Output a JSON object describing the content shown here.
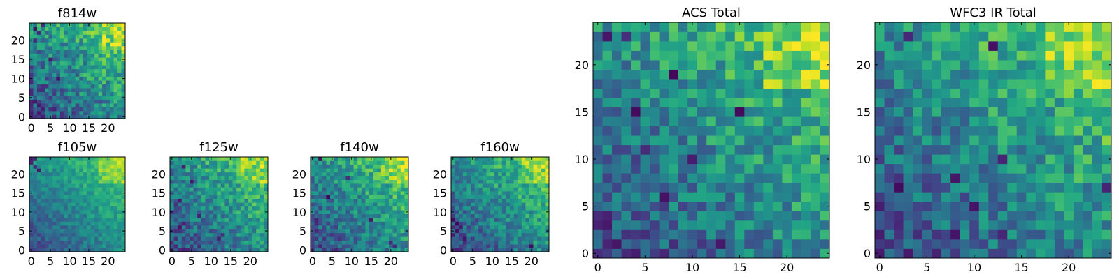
{
  "chart_data": [
    {
      "type": "heatmap",
      "title": "f814w",
      "grid_size": 25,
      "colormap": "viridis",
      "xlim": [
        0,
        25
      ],
      "ylim": [
        0,
        25
      ],
      "xticks": [
        0,
        5,
        10,
        15,
        20
      ],
      "yticks": [
        0,
        5,
        10,
        15,
        20
      ],
      "xtick_labels": [
        "0",
        "5",
        "10",
        "15",
        "20"
      ],
      "ytick_labels": [
        "0",
        "5",
        "10",
        "15",
        "20"
      ],
      "xlabel": "",
      "ylabel": "",
      "gradient": "increasing toward upper-right, noisy",
      "dark_cells": [
        [
          0,
          3
        ],
        [
          1,
          4
        ],
        [
          1,
          23
        ],
        [
          2,
          22
        ],
        [
          5,
          15
        ],
        [
          6,
          2
        ],
        [
          7,
          10
        ],
        [
          3,
          24
        ],
        [
          1,
          20
        ]
      ],
      "seed": 11,
      "noise": 0.35
    },
    {
      "type": "heatmap",
      "title": "f105w",
      "grid_size": 25,
      "colormap": "viridis",
      "xlim": [
        0,
        25
      ],
      "ylim": [
        0,
        25
      ],
      "xticks": [
        0,
        5,
        10,
        15,
        20
      ],
      "yticks": [
        0,
        5,
        10,
        15,
        20
      ],
      "xtick_labels": [
        "0",
        "5",
        "10",
        "15",
        "20"
      ],
      "ytick_labels": [
        "0",
        "5",
        "10",
        "15",
        "20"
      ],
      "xlabel": "",
      "ylabel": "",
      "gradient": "smooth, brightest upper-right",
      "dark_cells": [
        [
          0,
          23
        ],
        [
          1,
          22
        ],
        [
          2,
          21
        ],
        [
          0,
          24
        ],
        [
          1,
          24
        ]
      ],
      "seed": 23,
      "noise": 0.18
    },
    {
      "type": "heatmap",
      "title": "f125w",
      "grid_size": 25,
      "colormap": "viridis",
      "xlim": [
        0,
        25
      ],
      "ylim": [
        0,
        25
      ],
      "xticks": [
        0,
        5,
        10,
        15,
        20
      ],
      "yticks": [
        0,
        5,
        10,
        15,
        20
      ],
      "xtick_labels": [
        "0",
        "5",
        "10",
        "15",
        "20"
      ],
      "ytick_labels": [
        "0",
        "5",
        "10",
        "15",
        "20"
      ],
      "xlabel": "",
      "ylabel": "",
      "gradient": "increasing toward upper-right",
      "dark_cells": [
        [
          2,
          6
        ],
        [
          3,
          7
        ],
        [
          12,
          3
        ],
        [
          13,
          4
        ],
        [
          3,
          22
        ],
        [
          1,
          12
        ],
        [
          2,
          13
        ],
        [
          5,
          18
        ],
        [
          7,
          9
        ]
      ],
      "seed": 37,
      "noise": 0.3
    },
    {
      "type": "heatmap",
      "title": "f140w",
      "grid_size": 25,
      "colormap": "viridis",
      "xlim": [
        0,
        25
      ],
      "ylim": [
        0,
        25
      ],
      "xticks": [
        0,
        5,
        10,
        15,
        20
      ],
      "yticks": [
        0,
        5,
        10,
        15,
        20
      ],
      "xtick_labels": [
        "0",
        "5",
        "10",
        "15",
        "20"
      ],
      "ytick_labels": [
        "0",
        "5",
        "10",
        "15",
        "20"
      ],
      "xlabel": "",
      "ylabel": "",
      "gradient": "increasing toward upper-right",
      "dark_cells": [
        [
          1,
          7
        ],
        [
          1,
          8
        ],
        [
          15,
          8
        ],
        [
          20,
          2
        ],
        [
          21,
          1
        ],
        [
          4,
          14
        ],
        [
          2,
          24
        ],
        [
          9,
          19
        ]
      ],
      "seed": 41,
      "noise": 0.3
    },
    {
      "type": "heatmap",
      "title": "f160w",
      "grid_size": 25,
      "colormap": "viridis",
      "xlim": [
        0,
        25
      ],
      "ylim": [
        0,
        25
      ],
      "xticks": [
        0,
        5,
        10,
        15,
        20
      ],
      "yticks": [
        0,
        5,
        10,
        15,
        20
      ],
      "xtick_labels": [
        "0",
        "5",
        "10",
        "15",
        "20"
      ],
      "ytick_labels": [
        "0",
        "5",
        "10",
        "15",
        "20"
      ],
      "xlabel": "",
      "ylabel": "",
      "gradient": "increasing toward upper-right, dark lower-left",
      "dark_cells": [
        [
          0,
          4
        ],
        [
          1,
          5
        ],
        [
          0,
          6
        ],
        [
          1,
          7
        ],
        [
          0,
          8
        ],
        [
          2,
          6
        ],
        [
          20,
          1
        ],
        [
          3,
          3
        ]
      ],
      "seed": 53,
      "noise": 0.28
    },
    {
      "type": "heatmap",
      "title": "ACS Total",
      "grid_size": 25,
      "colormap": "viridis",
      "xlim": [
        0,
        25
      ],
      "ylim": [
        0,
        25
      ],
      "xticks": [
        0,
        5,
        10,
        15,
        20
      ],
      "yticks": [
        0,
        5,
        10,
        15,
        20
      ],
      "xtick_labels": [
        "0",
        "5",
        "10",
        "15",
        "20"
      ],
      "ytick_labels": [
        "0",
        "5",
        "10",
        "15",
        "20"
      ],
      "xlabel": "",
      "ylabel": "",
      "gradient": "increasing toward upper-right, noisy",
      "dark_cells": [
        [
          1,
          23
        ],
        [
          3,
          23
        ],
        [
          8,
          19
        ],
        [
          4,
          15
        ],
        [
          5,
          11
        ],
        [
          10,
          10
        ],
        [
          0,
          3
        ],
        [
          1,
          4
        ],
        [
          0,
          4
        ],
        [
          1,
          3
        ],
        [
          13,
          1
        ],
        [
          7,
          6
        ],
        [
          15,
          15
        ]
      ],
      "seed": 67,
      "noise": 0.33
    },
    {
      "type": "heatmap",
      "title": "WFC3 IR Total",
      "grid_size": 25,
      "colormap": "viridis",
      "xlim": [
        0,
        25
      ],
      "ylim": [
        0,
        25
      ],
      "xticks": [
        0,
        5,
        10,
        15,
        20
      ],
      "yticks": [
        0,
        5,
        10,
        15,
        20
      ],
      "xtick_labels": [
        "0",
        "5",
        "10",
        "15",
        "20"
      ],
      "ytick_labels": [
        "0",
        "5",
        "10",
        "15",
        "20"
      ],
      "xlabel": "",
      "ylabel": "",
      "gradient": "increasing toward upper-right, noisy",
      "dark_cells": [
        [
          0,
          0
        ],
        [
          8,
          8
        ],
        [
          13,
          10
        ],
        [
          8,
          2
        ],
        [
          13,
          2
        ],
        [
          2,
          7
        ],
        [
          24,
          7
        ],
        [
          10,
          5
        ],
        [
          12,
          22
        ],
        [
          3,
          23
        ]
      ],
      "seed": 79,
      "noise": 0.33
    }
  ]
}
